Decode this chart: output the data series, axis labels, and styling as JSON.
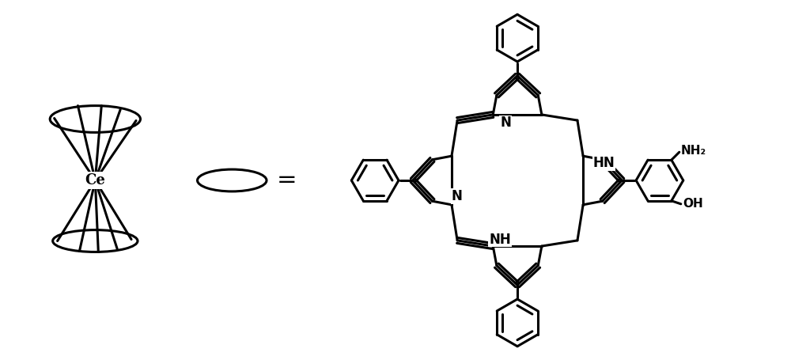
{
  "background_color": "#ffffff",
  "line_width": 2.2,
  "fig_width": 10.0,
  "fig_height": 4.55,
  "dpi": 100,
  "xlim": [
    0,
    10
  ],
  "ylim": [
    0,
    4.55
  ]
}
